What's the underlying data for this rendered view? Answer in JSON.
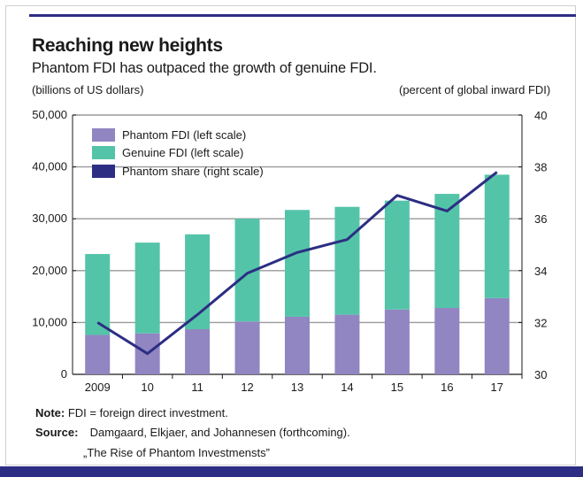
{
  "title": "Reaching new heights",
  "subtitle": "Phantom FDI has outpaced the growth of genuine FDI.",
  "note_label": "Note:",
  "note_text": "FDI = foreign direct investment.",
  "source_label": "Source:",
  "source_text": "Damgaard, Elkjaer, and Johannesen (forthcoming).",
  "source_text_2": "„The Rise of Phantom Investmensts”",
  "colors": {
    "phantom": "#9185c2",
    "genuine": "#54c4a9",
    "share_line": "#2c2e83",
    "grid": "#9a9a9a",
    "accent": "#2c2e83"
  },
  "chart_data": {
    "type": "bar",
    "stacked": true,
    "categories": [
      "2009",
      "10",
      "11",
      "12",
      "13",
      "14",
      "15",
      "16",
      "17"
    ],
    "series": [
      {
        "name": "Phantom FDI (left scale)",
        "axis": "left",
        "type": "bar",
        "values": [
          7600,
          7900,
          8700,
          10200,
          11100,
          11500,
          12500,
          12800,
          14700
        ]
      },
      {
        "name": "Genuine FDI (left scale)",
        "axis": "left",
        "type": "bar",
        "values": [
          15600,
          17500,
          18300,
          19800,
          20600,
          20800,
          21000,
          22000,
          23800
        ]
      },
      {
        "name": "Phantom share (right scale)",
        "axis": "right",
        "type": "line",
        "values": [
          32.0,
          30.8,
          32.3,
          33.9,
          34.7,
          35.2,
          36.9,
          36.3,
          37.8
        ]
      }
    ],
    "ylabel": "(billions of US dollars)",
    "ylabel_right": "(percent of global inward FDI)",
    "ylim": [
      0,
      50000
    ],
    "ylim_right": [
      30,
      40
    ],
    "yticks": [
      "0",
      "10,000",
      "20,000",
      "30,000",
      "40,000",
      "50,000"
    ],
    "yticks_right": [
      "30",
      "32",
      "34",
      "36",
      "38",
      "40"
    ],
    "grid": true,
    "legend_position": "top-left"
  }
}
